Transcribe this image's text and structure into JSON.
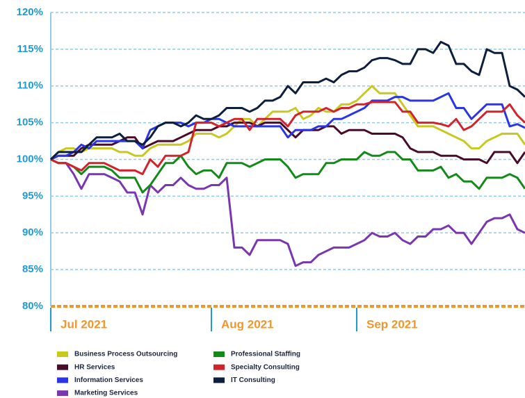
{
  "chart_data": {
    "type": "line",
    "categories": [
      "Jul 2021",
      null,
      null,
      null,
      null,
      null,
      null,
      null,
      null,
      null,
      null,
      null,
      null,
      null,
      null,
      null,
      null,
      null,
      null,
      null,
      null,
      "Aug 2021",
      null,
      null,
      null,
      null,
      null,
      null,
      null,
      null,
      null,
      null,
      null,
      null,
      null,
      null,
      null,
      null,
      null,
      null,
      "Sep 2021",
      null,
      null,
      null,
      null,
      null,
      null,
      null,
      null,
      null,
      null,
      null,
      null,
      null,
      null,
      null,
      null,
      null,
      null,
      null,
      null,
      null,
      null
    ],
    "ylim": [
      80,
      120
    ],
    "yticks": [
      {
        "value": 80,
        "label": "80%"
      },
      {
        "value": 85,
        "label": "85%"
      },
      {
        "value": 90,
        "label": "90%"
      },
      {
        "value": 95,
        "label": "95%"
      },
      {
        "value": 100,
        "label": "100%"
      },
      {
        "value": 105,
        "label": "105%"
      },
      {
        "value": 110,
        "label": "110%"
      },
      {
        "value": 115,
        "label": "115%"
      },
      {
        "value": 120,
        "label": "120%"
      }
    ],
    "grid": true,
    "legend": "bottom",
    "series": [
      {
        "name": "Business Process Outsourcing",
        "color": "#c8c81e",
        "values": [
          100,
          101,
          101.5,
          101.5,
          101,
          101.5,
          101.5,
          101.5,
          101.5,
          101,
          101,
          100.5,
          100.5,
          101.5,
          102,
          102,
          102,
          102,
          102.5,
          103.5,
          103.5,
          103.5,
          103,
          103.5,
          104.5,
          105.5,
          105.5,
          104.5,
          105.5,
          106.5,
          106.5,
          106.5,
          107,
          105.5,
          106,
          107,
          106.5,
          106.5,
          107.5,
          107.5,
          108,
          109,
          110,
          109,
          109,
          109,
          107.5,
          106,
          104.5,
          104.5,
          104.5,
          104,
          103.5,
          103,
          102.5,
          101.5,
          101.5,
          102.5,
          103,
          103.5,
          103.5,
          103.5,
          102
        ]
      },
      {
        "name": "HR Services",
        "color": "#4a0a2a",
        "values": [
          100,
          100.5,
          100.5,
          100.5,
          101.5,
          102,
          102,
          102,
          102,
          102.5,
          103,
          103,
          101.5,
          102,
          102.5,
          102.5,
          102.5,
          103,
          103.5,
          104,
          104,
          104,
          104.5,
          104.5,
          105,
          105,
          105,
          104.5,
          105,
          105,
          105,
          104,
          103,
          104,
          104,
          104,
          104.5,
          104.5,
          103.5,
          104,
          104,
          104,
          103.5,
          103.5,
          103.5,
          103.5,
          103,
          101.5,
          101,
          101,
          101,
          100.5,
          100.5,
          100.5,
          100,
          100,
          100,
          99.5,
          101,
          101,
          101,
          99.5,
          101
        ]
      },
      {
        "name": "Information Services",
        "color": "#2a35e8",
        "values": [
          100,
          100.5,
          100.5,
          101,
          102,
          101.5,
          102.5,
          102.5,
          102.5,
          102.5,
          102.5,
          102.5,
          101.5,
          104,
          104.5,
          105,
          105,
          105,
          104.5,
          105,
          105,
          105.5,
          105.5,
          105,
          104.5,
          104.5,
          104.5,
          104.5,
          104.5,
          104.5,
          104.5,
          103,
          104,
          104,
          104,
          104.5,
          104.5,
          105.5,
          105.5,
          106,
          106.5,
          107,
          108,
          108,
          108,
          108.5,
          108.5,
          108,
          108,
          108,
          108,
          108.5,
          109,
          107,
          107,
          105.5,
          106.5,
          107.5,
          107.5,
          107.5,
          104.5,
          104.8,
          104.3
        ]
      },
      {
        "name": "Marketing Services",
        "color": "#7a35b0",
        "values": [
          100,
          99.5,
          99.5,
          98,
          96,
          98,
          98,
          98,
          97.5,
          97,
          95.5,
          95.5,
          92.5,
          96.5,
          95.5,
          96.5,
          96.5,
          97.5,
          96.5,
          96,
          96,
          96.5,
          96.5,
          97.5,
          88,
          88,
          87,
          89,
          89,
          89,
          89,
          88.5,
          85.5,
          86,
          86,
          87,
          87.5,
          88,
          88,
          88,
          88.5,
          89,
          90,
          89.5,
          89.5,
          90,
          89,
          88.5,
          89.5,
          89.5,
          90.5,
          90.5,
          91,
          90,
          90,
          88.5,
          90,
          91.5,
          92,
          92,
          92.5,
          90.5,
          90
        ]
      },
      {
        "name": "Professional Staffing",
        "color": "#138a18",
        "values": [
          100,
          99.5,
          99.5,
          99,
          98,
          99,
          99,
          99,
          98.5,
          97.5,
          97.5,
          97.5,
          95.5,
          96.5,
          98,
          99.5,
          99.5,
          100.5,
          99,
          98,
          98.5,
          98.5,
          97.5,
          99.5,
          99.5,
          99.5,
          99,
          99.5,
          100,
          100,
          100,
          99,
          97.5,
          98,
          98,
          98,
          99.5,
          99.5,
          100,
          100,
          100,
          101,
          100.5,
          100.5,
          101,
          101,
          100,
          100,
          98.5,
          98.5,
          98.5,
          99,
          97.5,
          98,
          97,
          97,
          96,
          97.5,
          97.5,
          97.5,
          98,
          97.5,
          96
        ]
      },
      {
        "name": "Specialty Consulting",
        "color": "#d2232a",
        "values": [
          100,
          99.5,
          99.5,
          99,
          98.5,
          99.5,
          99.5,
          99.5,
          99,
          98.5,
          98.5,
          98.5,
          98,
          100,
          99,
          100.5,
          100.5,
          100.5,
          101,
          105,
          105,
          105,
          104.5,
          105,
          105.5,
          105.5,
          104,
          105.5,
          105.5,
          105.5,
          105.5,
          104.5,
          106,
          106.5,
          106.5,
          106.5,
          107,
          106.5,
          107,
          107,
          107.5,
          107.5,
          107.8,
          107.8,
          107.8,
          107.8,
          106.5,
          106.5,
          105,
          105,
          105,
          104.8,
          104.5,
          105.5,
          104,
          104.5,
          105.5,
          106.5,
          106.5,
          106.5,
          107.5,
          106,
          105
        ]
      },
      {
        "name": "IT Consulting",
        "color": "#0d1f3c",
        "values": [
          100,
          101,
          101,
          101,
          101,
          102,
          103,
          103,
          103,
          103.5,
          102.5,
          102.5,
          102,
          103,
          104.5,
          105,
          105,
          104.5,
          105,
          106,
          105.5,
          105.5,
          106,
          107,
          107,
          107,
          106.5,
          107,
          108,
          108,
          108.5,
          110,
          109,
          110.5,
          110.5,
          110.5,
          111,
          110.5,
          111.5,
          112,
          112,
          112.5,
          113.5,
          113.8,
          113.8,
          113.5,
          113,
          113,
          115,
          115,
          114.5,
          116,
          115.5,
          113,
          113,
          112,
          111.5,
          115,
          114.5,
          114.5,
          110,
          109.5,
          108.5
        ]
      }
    ]
  }
}
